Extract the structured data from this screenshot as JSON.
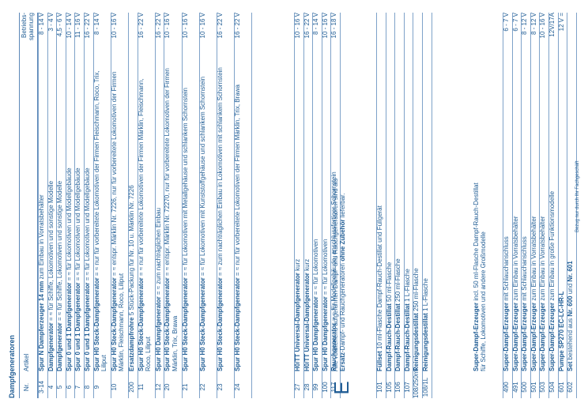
{
  "section_title": "Dampfgeneratoren",
  "header": {
    "nr": "Nr.",
    "artikel": "Artikel",
    "spannung": "Betriebs-\nspannung"
  },
  "block1": [
    {
      "nr": "3-14",
      "pre": "",
      "bold": "Spur N Dampferzeuger 14 mm",
      "post": " zum Einbau in Vorratsbehälter",
      "volt": "8 - 14 V"
    },
    {
      "nr": "4",
      "pre": "",
      "bold": "Dampfgenerator",
      "post": " = ≈ für Schiffe, Lokomotiven und sonstige Modelle",
      "volt": "3 - 4 V"
    },
    {
      "nr": "5",
      "pre": "",
      "bold": "Dampfgenerator",
      "post": " = ≈ für Schiffe, Lokomotiven und sonstige Modelle",
      "volt": "4,5 - 6 V"
    },
    {
      "nr": "6",
      "pre": "",
      "bold": "Spur 0 und 1 Dampfgenerator",
      "post": " = ≈ für Lokomotiven und Modellgebäude",
      "volt": "10 - 14 V"
    },
    {
      "nr": "7",
      "pre": "",
      "bold": "Spur 0 und 1 Dampfgenerator",
      "post": " = ≈ für Lokomotiven und Modellgebäude",
      "volt": "11 - 16 V"
    },
    {
      "nr": "8",
      "pre": "",
      "bold": "Spur 0 und 1 Dampfgenerator",
      "post": " = ≈ für Lokomotiven und Modellgebäude",
      "volt": "16 - 22 V"
    },
    {
      "nr": "9",
      "pre": "",
      "bold": "Spur H0 Steck-Dampfgenerator",
      "post": " = ≈ nur für vorbereitete Lokomotiven der Firmen Fleischmann, Roco, Trix, Liliput",
      "volt": "8 - 14 V"
    },
    {
      "nr": "10",
      "pre": "",
      "bold": "Spur H0 Steck-Dampfgenerator",
      "post": " = ≈ entspr. Märklin Nr. 7226, nur für vorbereitete Lokomotiven der Firmen Märklin, Fleischmann, Roco, Liliput",
      "volt": "10 - 16 V"
    },
    {
      "nr": "200",
      "pre": "",
      "bold": "Ersatzdampfrohre",
      "post": " 5 Stück-Packung für Nr. 10 u. Märklin Nr. 7226",
      "volt": ""
    },
    {
      "nr": "11",
      "pre": "",
      "bold": "Spur H0 Steck-Dampfgenerator",
      "post": " = ≈ nur für vorbereitete Lokomotiven der Firmen Märklin, Fleischmann, Roco, Liliput",
      "volt": "16 - 22 V"
    },
    {
      "nr": "12",
      "pre": "",
      "bold": "Spur H0 Dampfgenerator",
      "post": " = ≈ zum nachträglichen Einbau",
      "volt": "16 - 22 V"
    },
    {
      "nr": "20",
      "pre": "",
      "bold": "Spur H0 Steck-Dampfgenerator",
      "post": " = ≈ entspr. Märklin Nr. 72270, nur für vorbereitete Lokomotiven der Firmen Märklin, Trix, Brawa",
      "volt": "10 - 16 V"
    },
    {
      "nr": "21",
      "pre": "",
      "bold": "Spur H0 Steck-Dampfgenerator",
      "post": " = ≈ für Lokomotiven mit Metallgehäuse und schlankem Schornstein",
      "volt": "10 - 16 V"
    },
    {
      "nr": "22",
      "pre": "",
      "bold": "Spur H0 Steck-Dampfgenerator",
      "post": " = ≈ für Lokomotiven mit Kunststoffgehäuse und schlankem Schornstein",
      "volt": "10 - 16 V"
    },
    {
      "nr": "23",
      "pre": "",
      "bold": "Spur H0 Steck-Dampfgenerator",
      "post": " = ≈ zum nachträglichen Einbau in Lokomotiven mit schlankem Schornstein",
      "volt": "16 - 22 V"
    },
    {
      "nr": "24",
      "pre": "",
      "bold": "Spur H0 Steck-Dampfgenerator",
      "post": " = ≈ nur für vorbereitete Lokomotiven der Firmen Märklin, Trix, Brawa",
      "volt": "16 - 22 V"
    }
  ],
  "block2": [
    {
      "nr": "27",
      "pre": "",
      "bold": "H0/TT Universal-Dampfgenerator",
      "post": " kurz",
      "volt": "10 - 16 V"
    },
    {
      "nr": "28",
      "pre": "",
      "bold": "H0/TT Universal-Dampfgenerator",
      "post": " kurz",
      "volt": "16 - 22 V"
    },
    {
      "nr": "99",
      "pre": "",
      "bold": "Spur H0 Dampfgenerator",
      "post": " = ≈ für Lokomotiven",
      "volt": "8 - 14 V"
    },
    {
      "nr": "100",
      "pre": "",
      "bold": "Spur H0 Dampfgenerator",
      "post": " = ≈ für Lokomotiven",
      "volt": "10 - 16 V"
    },
    {
      "nr": "117",
      "pre": "",
      "bold": "Rauchgenerator",
      "post": " = ≈ für Modellgebäude, anschlussfertiger Schornstein",
      "volt": "16 - 18 V"
    }
  ],
  "note_e": {
    "letter": "E",
    "line1": "Alle vorstehend aufgeführten Dampf- und Rauchgeneratoren sind als",
    "line2_bold_a": "Ersatz",
    "line2_mid": "-Dampf- und Rauchgeneratoren ",
    "line2_bold_b": "ohne Zubehör",
    "line2_end": " lieferbar."
  },
  "block3": [
    {
      "nr": "101",
      "pre": "",
      "bold": "Füllset",
      "post": " 10 ml-Flasche Dampf-Rauch-Destillat und Füllgerät",
      "volt": ""
    },
    {
      "nr": "105",
      "pre": "",
      "bold": "Dampf-Rauch-Destillat",
      "post": " 50 ml-Flasche",
      "volt": ""
    },
    {
      "nr": "106",
      "pre": "",
      "bold": "Dampf-Rauch-Destillat",
      "post": " 250 ml-Flasche",
      "volt": ""
    },
    {
      "nr": "107",
      "pre": "",
      "bold": "Dampf-Rauch-Destillat",
      "post": " 1 L-Flasche",
      "volt": ""
    },
    {
      "nr": "108/250ml",
      "pre": "",
      "bold": "Reinigungsdestillat",
      "post": " 250 ml-Flasche",
      "volt": ""
    },
    {
      "nr": "108/1L",
      "pre": "",
      "bold": "Reinigungsdestillat",
      "post": " 1 L-Flasche",
      "volt": ""
    }
  ],
  "note_super": {
    "bold": "Super-Dampf-Erzeuger",
    "line1": " incl. 50 ml-Flasche Dampf-Rauch-Destillat",
    "line2": "für Schiffe, Lokomotiven und andere Großmodelle"
  },
  "block4": [
    {
      "nr": "490",
      "pre": "",
      "bold": "Super-Dampf-Erzeuger",
      "post": " mit Schlauchanschluss",
      "volt": "6 - 7 V"
    },
    {
      "nr": "491",
      "pre": "",
      "bold": "Super-Dampf-Erzeuger",
      "post": " zum Einbau in Vorratsbehälter",
      "volt": "6 - 7 V"
    },
    {
      "nr": "500",
      "pre": "",
      "bold": "Super-Dampf-Erzeuger",
      "post": " mit Schlauchanschluss",
      "volt": "8 - 12 V"
    },
    {
      "nr": "501",
      "pre": "",
      "bold": "Super-Dampf-Erzeuger",
      "post": " zum Einbau in Vorratsbehälter",
      "volt": "8 - 12 V"
    },
    {
      "nr": "503",
      "pre": "",
      "bold": "Super-Dampf-Erzeuger",
      "post": " zum Einbau in Vorratsbehälter",
      "volt": "10 - 16 V"
    },
    {
      "nr": "504",
      "pre": "",
      "bold": "Super-Dampf-Erzeuger",
      "post": " zum Einbau in große Funktionsmodelle",
      "volt": "12V/17A"
    },
    {
      "nr": "601",
      "pre": "",
      "bold": "Pumpe SP270 EC-LC-HR-L",
      "post": "",
      "volt": "12 V ="
    },
    {
      "nr": "602",
      "pre": "",
      "bold": "Set",
      "post": " bestehend aus ",
      "bold2": "Nr. 600",
      "post2": " und ",
      "bold3": "Nr. 601",
      "volt": ""
    }
  ],
  "footer": "Bezug nur durch Ihr Fachgeschäft"
}
